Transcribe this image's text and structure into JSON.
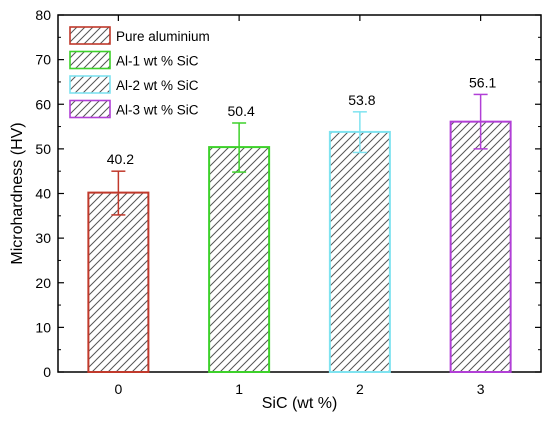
{
  "chart_data": {
    "type": "bar",
    "title": "",
    "xlabel": "SiC (wt %)",
    "ylabel": "Microhardness (HV)",
    "categories": [
      "0",
      "1",
      "2",
      "3"
    ],
    "values": [
      40.2,
      50.4,
      53.8,
      56.1
    ],
    "error_low": [
      35.2,
      44.8,
      49.2,
      50.0
    ],
    "error_high": [
      45.0,
      55.8,
      58.3,
      62.2
    ],
    "data_labels": [
      "40.2",
      "50.4",
      "53.8",
      "56.1"
    ],
    "series_names": [
      "Pure aluminium",
      "Al-1 wt % SiC",
      "Al-2 wt % SiC",
      "Al-3 wt % SiC"
    ],
    "colors": [
      "#c0392b",
      "#3dd12a",
      "#7fe3f0",
      "#b13fd6"
    ],
    "ylim": [
      0,
      80
    ],
    "yticks": [
      "0",
      "10",
      "20",
      "30",
      "40",
      "50",
      "60",
      "70",
      "80"
    ],
    "fill_pattern": "diagonal-hatch",
    "grid": false,
    "legend_position": "top-left"
  }
}
